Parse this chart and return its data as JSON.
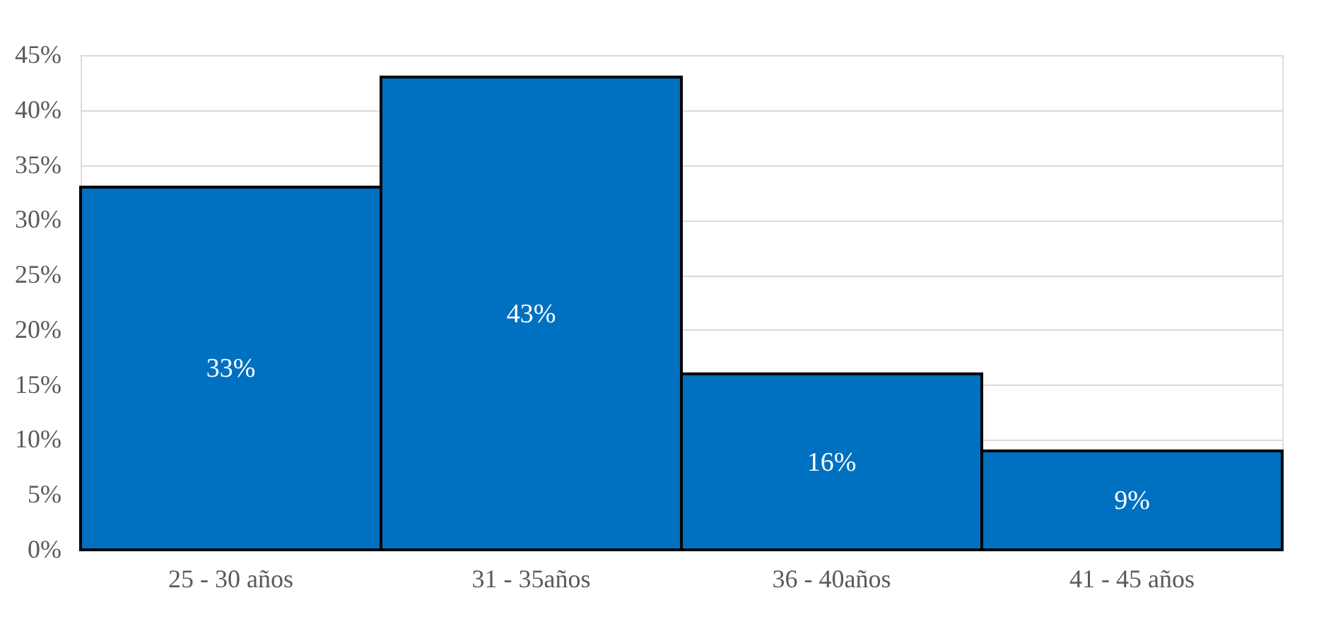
{
  "chart_data": {
    "type": "bar",
    "categories": [
      "25 - 30 años",
      "31 - 35años",
      "36 - 40años",
      "41 - 45 años"
    ],
    "values": [
      33,
      43,
      16,
      9
    ],
    "color": "#0070c0",
    "value_labels": [
      "33%",
      "43%",
      "16%",
      "9%"
    ],
    "ylim": [
      0,
      45
    ],
    "yticks": [
      {
        "value": 0,
        "label": "0%"
      },
      {
        "value": 5,
        "label": "5%"
      },
      {
        "value": 10,
        "label": "10%"
      },
      {
        "value": 15,
        "label": "15%"
      },
      {
        "value": 20,
        "label": "20%"
      },
      {
        "value": 25,
        "label": "25%"
      },
      {
        "value": 30,
        "label": "30%"
      },
      {
        "value": 35,
        "label": "35%"
      },
      {
        "value": 40,
        "label": "40%"
      },
      {
        "value": 45,
        "label": "45%"
      }
    ],
    "grid": "y"
  }
}
